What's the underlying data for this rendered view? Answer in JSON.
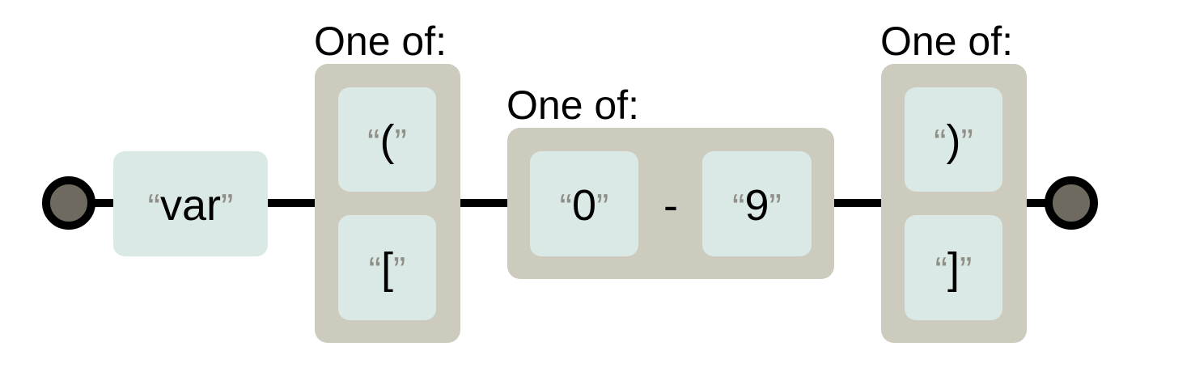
{
  "colors": {
    "group_fill": "#cccbbd",
    "literal_fill": "#dbe9e6",
    "terminal_fill": "#6e6a60",
    "quote_color": "#8f8f88",
    "line_color": "#000000"
  },
  "diagram": {
    "start_terminal": "start",
    "end_terminal": "end",
    "sequence": [
      {
        "kind": "literal",
        "text": "var"
      },
      {
        "kind": "one_of",
        "caption": "One of:",
        "options": [
          "(",
          "["
        ]
      },
      {
        "kind": "range",
        "caption": "One of:",
        "from": "0",
        "separator": "-",
        "to": "9"
      },
      {
        "kind": "one_of",
        "caption": "One of:",
        "options": [
          ")",
          "]"
        ]
      }
    ]
  }
}
